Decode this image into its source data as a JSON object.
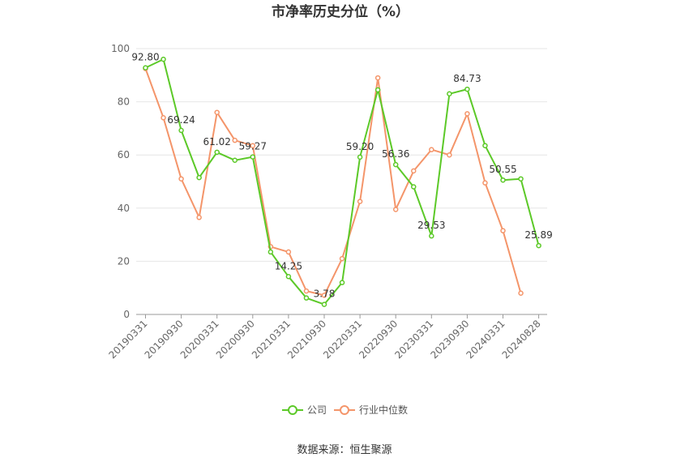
{
  "chart_data": {
    "type": "line",
    "title": "市净率历史分位（%）",
    "source": "数据来源：恒生聚源",
    "ylim": [
      0,
      100
    ],
    "yticks": [
      0,
      20,
      40,
      60,
      80,
      100
    ],
    "grid": true,
    "legend_position": "bottom-center",
    "x_tick_labels": [
      "20190331",
      "20190930",
      "20200331",
      "20200930",
      "20210331",
      "20210930",
      "20220331",
      "20220930",
      "20230331",
      "20230930",
      "20240331",
      "20240828"
    ],
    "series": [
      {
        "name": "公司",
        "color": "#5cc928",
        "values": [
          92.8,
          96,
          69.24,
          51.5,
          61.02,
          58,
          59.27,
          23.5,
          14.25,
          6.2,
          3.78,
          12,
          59.2,
          84.5,
          56.36,
          48,
          29.53,
          83,
          84.73,
          63.5,
          50.55,
          51,
          25.89
        ],
        "labels": {
          "0": "92.80",
          "2": "69.24",
          "4": "61.02",
          "6": "59.27",
          "8": "14.25",
          "10": "3.78",
          "12": "59.20",
          "14": "56.36",
          "16": "29.53",
          "18": "84.73",
          "20": "50.55",
          "22": "25.89"
        }
      },
      {
        "name": "行业中位数",
        "color": "#f4956a",
        "values": [
          92.5,
          74,
          51,
          36.5,
          76,
          65.5,
          63.5,
          25.5,
          23.5,
          8.8,
          7.2,
          21,
          42.5,
          89,
          39.5,
          54,
          62,
          60,
          75.5,
          49.5,
          31.5,
          8,
          null
        ]
      }
    ]
  }
}
